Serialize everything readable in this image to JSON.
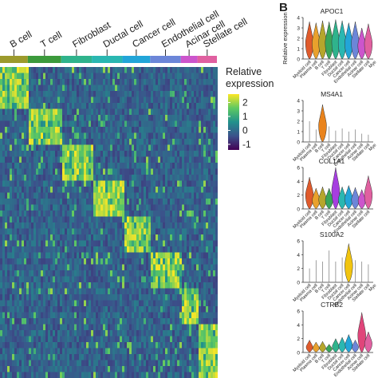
{
  "panel_b_label": "B",
  "chart_data": [
    {
      "type": "heatmap",
      "title": "",
      "clusters": [
        {
          "name": "B cell",
          "color": "#9c9a2c",
          "weight": 1.0
        },
        {
          "name": "T cell",
          "color": "#3c9a3c",
          "weight": 1.2
        },
        {
          "name": "Fibroblast",
          "color": "#2fb38c",
          "weight": 1.1
        },
        {
          "name": "Ductal cell",
          "color": "#2ab7b1",
          "weight": 1.1
        },
        {
          "name": "Cancer cell",
          "color": "#22a5d8",
          "weight": 1.0
        },
        {
          "name": "Endothelial cell",
          "color": "#6c86d8",
          "weight": 1.1
        },
        {
          "name": "Acinar cell",
          "color": "#cc55cc",
          "weight": 0.6
        },
        {
          "name": "Stellate cell",
          "color": "#e060a0",
          "weight": 0.7
        }
      ],
      "first_label_partial": "B cell",
      "legend": {
        "title_lines": [
          "Relative",
          "expression"
        ],
        "ticks": [
          2,
          1,
          0,
          -1
        ],
        "range": [
          -1.4,
          2.6
        ],
        "colors": [
          "#440154",
          "#3b528b",
          "#21918c",
          "#5ec962",
          "#fde725"
        ]
      },
      "grid": false
    },
    {
      "type": "violin",
      "panels": [
        {
          "gene": "APOC1",
          "ylabel": "Relative expression",
          "yticks": [
            "4",
            "3",
            "2",
            "1",
            "0"
          ],
          "ymax": 4,
          "categories": [
            "Myeloid cell",
            "Plasma cell",
            "B cell",
            "T cell",
            "Fibroblast",
            "Ductal cell",
            "Cancer cell",
            "Endothelial cell",
            "Acinar cell",
            "Stellate cell"
          ],
          "values": [
            3.6,
            3.5,
            3.7,
            3.6,
            3.8,
            3.7,
            3.5,
            3.6,
            3.0,
            3.4
          ],
          "colors": [
            "#e05a2b",
            "#e9a12c",
            "#b6a62c",
            "#3aa55a",
            "#2fb38c",
            "#2ab7b1",
            "#22a5d8",
            "#6c86d8",
            "#cc55cc",
            "#e060a0"
          ],
          "right_cut": "Mye"
        },
        {
          "gene": "MS4A1",
          "yticks": [
            "4",
            "3",
            "2",
            "1",
            "0"
          ],
          "ymax": 4,
          "categories": [
            "Myeloid cell",
            "Plasma cell",
            "B cell",
            "T cell",
            "Fibroblast",
            "Ductal cell",
            "Cancer cell",
            "Endothelial cell",
            "Acinar cell",
            "Stellate cell"
          ],
          "values": [
            2.0,
            1.2,
            3.6,
            1.5,
            1.1,
            1.3,
            1.0,
            1.2,
            0.8,
            0.7
          ],
          "colors": [
            "#999999",
            "#999999",
            "#e9831c",
            "#999999",
            "#999999",
            "#999999",
            "#999999",
            "#999999",
            "#999999",
            "#999999"
          ],
          "right_cut": "Mye"
        },
        {
          "gene": "COL1A1",
          "yticks": [
            "6",
            "4",
            "2",
            "0"
          ],
          "ymax": 6,
          "categories": [
            "Myeloid cell",
            "Plasma cell",
            "B cell",
            "T cell",
            "Fibroblast",
            "Ductal cell",
            "Cancer cell",
            "Endothelial cell",
            "Acinar cell",
            "Stellate cell"
          ],
          "values": [
            4.6,
            3.0,
            3.2,
            3.0,
            6.0,
            3.2,
            3.4,
            3.1,
            2.8,
            4.8
          ],
          "colors": [
            "#e05a2b",
            "#e9a12c",
            "#b6a62c",
            "#3aa55a",
            "#a63ee0",
            "#2ab7b1",
            "#22a5d8",
            "#6c86d8",
            "#cc55cc",
            "#e060a0"
          ],
          "right_cut": ""
        },
        {
          "gene": "S100A2",
          "yticks": [
            "6",
            "4",
            "2",
            "0"
          ],
          "ymax": 6,
          "categories": [
            "Myeloid cell",
            "Plasma cell",
            "B cell",
            "T cell",
            "Fibroblast",
            "Ductal cell",
            "Cancer cell",
            "Endothelial cell",
            "Acinar cell",
            "Stellate cell"
          ],
          "values": [
            2.0,
            3.2,
            3.0,
            4.6,
            3.0,
            3.6,
            5.6,
            3.2,
            3.0,
            2.6
          ],
          "colors": [
            "#999999",
            "#999999",
            "#999999",
            "#999999",
            "#999999",
            "#999999",
            "#f1c40f",
            "#999999",
            "#999999",
            "#999999"
          ],
          "right_cut": "Mye"
        },
        {
          "gene": "CTRB2",
          "yticks": [
            "6",
            "4",
            "2",
            "0"
          ],
          "ymax": 6,
          "categories": [
            "Myeloid cell",
            "Plasma cell",
            "B cell",
            "T cell",
            "Fibroblast",
            "Ductal cell",
            "Cancer cell",
            "Endothelial cell",
            "Acinar cell",
            "Stellate cell"
          ],
          "values": [
            1.8,
            1.5,
            1.6,
            1.2,
            2.0,
            2.2,
            2.6,
            1.8,
            5.8,
            3.0
          ],
          "colors": [
            "#e05a2b",
            "#e9a12c",
            "#b6a62c",
            "#3aa55a",
            "#2fb38c",
            "#2ab7b1",
            "#22a5d8",
            "#6c86d8",
            "#e0457a",
            "#e060a0"
          ],
          "right_cut": ""
        }
      ]
    }
  ]
}
